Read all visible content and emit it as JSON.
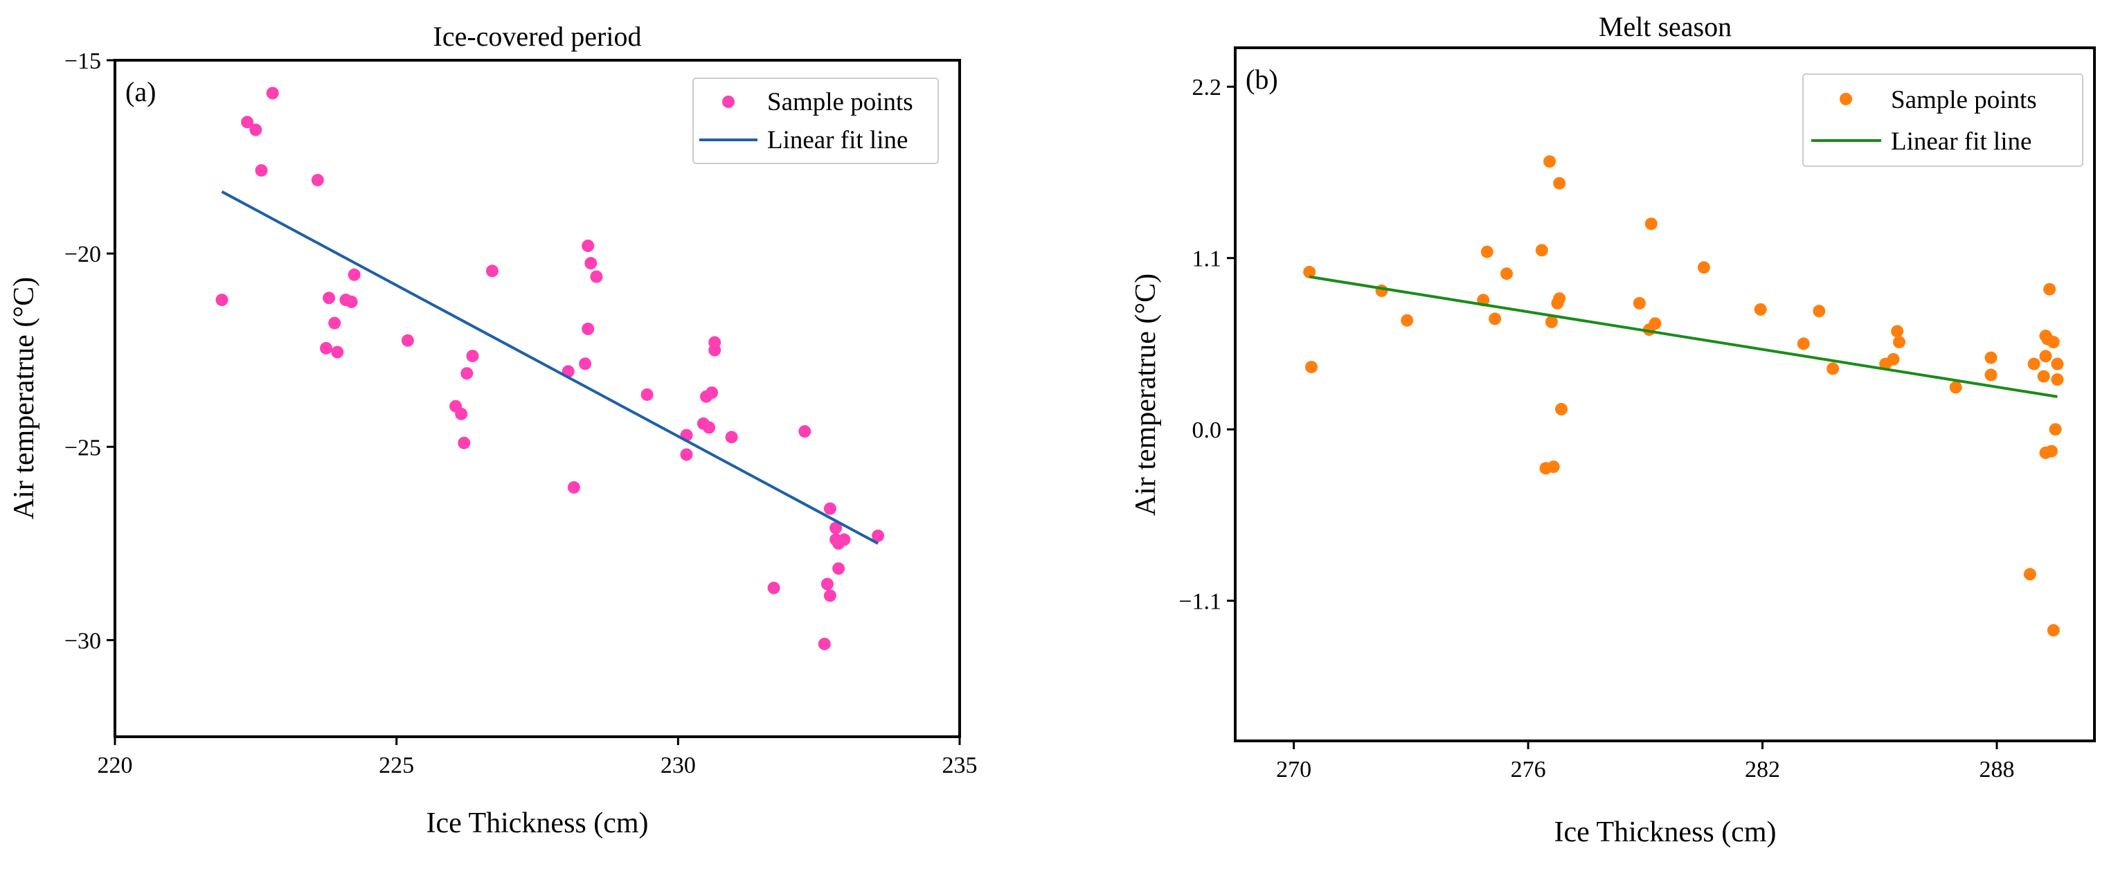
{
  "chart_data": [
    {
      "type": "scatter",
      "title": "Ice-covered period",
      "panel_label": "(a)",
      "xlabel": "Ice Thickness (cm)",
      "ylabel": "Air temperatrue (°C)",
      "xlim": [
        220,
        235
      ],
      "ylim": [
        -32.5,
        -15
      ],
      "xticks": [
        220,
        225,
        230,
        235
      ],
      "xtick_labels": [
        "220",
        "225",
        "230",
        "235"
      ],
      "yticks": [
        -15,
        -20,
        -25,
        -30
      ],
      "ytick_labels": [
        "−15",
        "−20",
        "−25",
        "−30"
      ],
      "legend": {
        "position": "top-right",
        "points_label": "Sample points",
        "line_label": "Linear fit line"
      },
      "point_color": "#ff3fb4",
      "line_color": "#1f5fa8",
      "points": [
        [
          221.9,
          -21.2
        ],
        [
          222.35,
          -16.6
        ],
        [
          222.5,
          -16.8
        ],
        [
          222.6,
          -17.85
        ],
        [
          222.8,
          -15.85
        ],
        [
          223.6,
          -18.1
        ],
        [
          223.8,
          -21.15
        ],
        [
          223.75,
          -22.45
        ],
        [
          223.9,
          -21.8
        ],
        [
          223.95,
          -22.55
        ],
        [
          224.1,
          -21.2
        ],
        [
          224.2,
          -21.25
        ],
        [
          224.25,
          -20.55
        ],
        [
          225.2,
          -22.25
        ],
        [
          226.05,
          -23.95
        ],
        [
          226.15,
          -24.15
        ],
        [
          226.2,
          -24.9
        ],
        [
          226.25,
          -23.1
        ],
        [
          226.35,
          -22.65
        ],
        [
          226.7,
          -20.45
        ],
        [
          228.05,
          -23.05
        ],
        [
          228.15,
          -26.05
        ],
        [
          228.35,
          -22.85
        ],
        [
          228.4,
          -21.95
        ],
        [
          228.4,
          -19.8
        ],
        [
          228.45,
          -20.25
        ],
        [
          228.55,
          -20.6
        ],
        [
          229.45,
          -23.65
        ],
        [
          230.15,
          -25.2
        ],
        [
          230.15,
          -24.7
        ],
        [
          230.45,
          -24.4
        ],
        [
          230.5,
          -23.7
        ],
        [
          230.55,
          -24.5
        ],
        [
          230.6,
          -23.6
        ],
        [
          230.65,
          -22.5
        ],
        [
          230.65,
          -22.3
        ],
        [
          230.95,
          -24.75
        ],
        [
          231.7,
          -28.65
        ],
        [
          232.25,
          -24.6
        ],
        [
          232.6,
          -30.1
        ],
        [
          232.65,
          -28.55
        ],
        [
          232.7,
          -28.85
        ],
        [
          232.7,
          -26.6
        ],
        [
          232.8,
          -27.1
        ],
        [
          232.85,
          -28.15
        ],
        [
          232.85,
          -27.5
        ],
        [
          232.8,
          -27.4
        ],
        [
          232.95,
          -27.4
        ],
        [
          233.55,
          -27.3
        ]
      ],
      "fit_line": {
        "x": [
          221.9,
          233.55
        ],
        "y": [
          -18.4,
          -27.5
        ]
      }
    },
    {
      "type": "scatter",
      "title": "Melt season",
      "panel_label": "(b)",
      "xlabel": "Ice Thickness (cm)",
      "ylabel": "Air temperatrue (°C)",
      "xlim": [
        268.5,
        290.5
      ],
      "ylim": [
        -2.0,
        2.45
      ],
      "xticks": [
        270,
        276,
        282,
        288
      ],
      "xtick_labels": [
        "270",
        "276",
        "282",
        "288"
      ],
      "yticks": [
        2.2,
        1.1,
        0.0,
        -1.1
      ],
      "ytick_labels": [
        "2.2",
        "1.1",
        "0.0",
        "−1.1"
      ],
      "legend": {
        "position": "top-right",
        "points_label": "Sample points",
        "line_label": "Linear fit line"
      },
      "point_color": "#ff7f0e",
      "line_color": "#1a8c1a",
      "points": [
        [
          270.4,
          1.01
        ],
        [
          270.45,
          0.4
        ],
        [
          272.25,
          0.89
        ],
        [
          272.9,
          0.7
        ],
        [
          274.85,
          0.83
        ],
        [
          274.95,
          1.14
        ],
        [
          275.15,
          0.71
        ],
        [
          275.45,
          1.0
        ],
        [
          276.35,
          1.15
        ],
        [
          276.45,
          -0.25
        ],
        [
          276.55,
          1.72
        ],
        [
          276.6,
          0.69
        ],
        [
          276.65,
          -0.24
        ],
        [
          276.75,
          0.81
        ],
        [
          276.8,
          1.58
        ],
        [
          276.8,
          0.84
        ],
        [
          276.85,
          0.13
        ],
        [
          278.85,
          0.81
        ],
        [
          279.1,
          0.64
        ],
        [
          279.15,
          1.32
        ],
        [
          279.25,
          0.68
        ],
        [
          280.5,
          1.04
        ],
        [
          281.95,
          0.77
        ],
        [
          283.05,
          0.55
        ],
        [
          283.45,
          0.76
        ],
        [
          283.8,
          0.39
        ],
        [
          285.15,
          0.42
        ],
        [
          285.35,
          0.45
        ],
        [
          285.45,
          0.63
        ],
        [
          285.5,
          0.56
        ],
        [
          286.95,
          0.27
        ],
        [
          287.85,
          0.46
        ],
        [
          287.85,
          0.35
        ],
        [
          288.85,
          -0.93
        ],
        [
          288.95,
          0.42
        ],
        [
          289.2,
          0.34
        ],
        [
          289.25,
          -0.15
        ],
        [
          289.25,
          0.6
        ],
        [
          289.25,
          0.47
        ],
        [
          289.3,
          0.58
        ],
        [
          289.35,
          0.9
        ],
        [
          289.4,
          -0.14
        ],
        [
          289.45,
          -1.29
        ],
        [
          289.45,
          0.56
        ],
        [
          289.5,
          0.0
        ],
        [
          289.55,
          0.42
        ],
        [
          289.55,
          0.32
        ]
      ],
      "fit_line": {
        "x": [
          270.4,
          289.55
        ],
        "y": [
          0.98,
          0.21
        ]
      }
    }
  ]
}
